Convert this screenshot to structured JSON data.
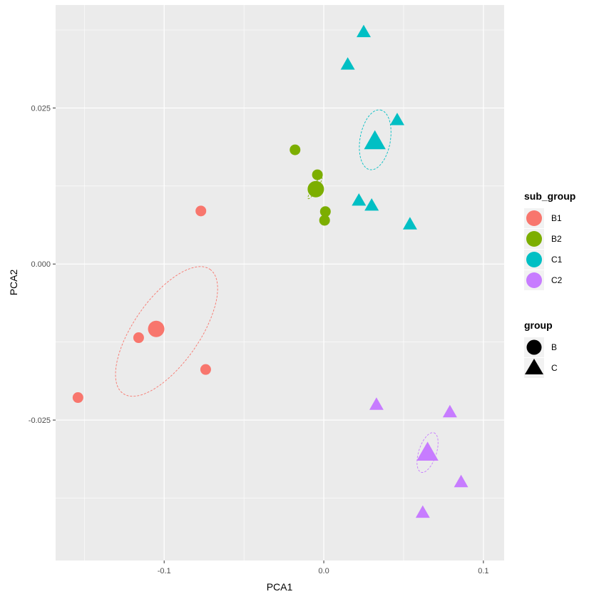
{
  "chart_data": {
    "type": "scatter",
    "title": "",
    "xlabel": "PCA1",
    "ylabel": "PCA2",
    "xlim": [
      -0.168,
      0.113
    ],
    "ylim": [
      -0.0475,
      0.0415
    ],
    "x_ticks": [
      {
        "value": -0.1,
        "label": "-0.1"
      },
      {
        "value": 0.0,
        "label": "0.0"
      },
      {
        "value": 0.1,
        "label": "0.1"
      }
    ],
    "y_ticks": [
      {
        "value": -0.025,
        "label": "-0.025"
      },
      {
        "value": 0.0,
        "label": "0.000"
      },
      {
        "value": 0.025,
        "label": "0.025"
      }
    ],
    "grid": true,
    "legend_position": "right",
    "legend_sub_group": {
      "title": "sub_group",
      "entries": [
        {
          "label": "B1",
          "color": "#F8766D"
        },
        {
          "label": "B2",
          "color": "#7CAE00"
        },
        {
          "label": "C1",
          "color": "#00BFC4"
        },
        {
          "label": "C2",
          "color": "#C77CFF"
        }
      ]
    },
    "legend_group": {
      "title": "group",
      "entries": [
        {
          "label": "B",
          "shape": "circle"
        },
        {
          "label": "C",
          "shape": "triangle"
        }
      ]
    },
    "series": [
      {
        "sub_group": "B1",
        "group": "B",
        "color": "#F8766D",
        "shape": "circle",
        "points": [
          [
            -0.077,
            0.0085
          ],
          [
            -0.116,
            -0.0118
          ],
          [
            -0.074,
            -0.0169
          ],
          [
            -0.154,
            -0.0214
          ]
        ],
        "centroid": [
          -0.105,
          -0.0104
        ],
        "ellipse": {
          "cx": -0.0985,
          "cy": -0.0108,
          "rx": 0.0475,
          "ry": 0.0205,
          "angle_deg": -55
        }
      },
      {
        "sub_group": "B2",
        "group": "B",
        "color": "#7CAE00",
        "shape": "circle",
        "points": [
          [
            -0.018,
            0.0183
          ],
          [
            -0.004,
            0.0143
          ],
          [
            0.001,
            0.0084
          ],
          [
            0.0005,
            0.007
          ]
        ],
        "centroid": [
          -0.005,
          0.012
        ],
        "ellipse": {
          "cx": -0.0055,
          "cy": 0.0122,
          "rx": 0.008,
          "ry": 0.0015,
          "angle_deg": -58
        }
      },
      {
        "sub_group": "C1",
        "group": "C",
        "color": "#00BFC4",
        "shape": "triangle",
        "points": [
          [
            0.025,
            0.0372
          ],
          [
            0.015,
            0.032
          ],
          [
            0.046,
            0.0231
          ],
          [
            0.022,
            0.0102
          ],
          [
            0.03,
            0.0094
          ],
          [
            0.054,
            0.0064
          ]
        ],
        "centroid": [
          0.032,
          0.0197
        ],
        "ellipse": {
          "cx": 0.0322,
          "cy": 0.0199,
          "rx": 0.019,
          "ry": 0.0095,
          "angle_deg": -80
        }
      },
      {
        "sub_group": "C2",
        "group": "C",
        "color": "#C77CFF",
        "shape": "triangle",
        "points": [
          [
            0.033,
            -0.0225
          ],
          [
            0.079,
            -0.0237
          ],
          [
            0.086,
            -0.0349
          ],
          [
            0.062,
            -0.0398
          ]
        ],
        "centroid": [
          0.065,
          -0.0302
        ],
        "ellipse": {
          "cx": 0.065,
          "cy": -0.0302,
          "rx": 0.013,
          "ry": 0.0055,
          "angle_deg": -72
        }
      }
    ]
  }
}
